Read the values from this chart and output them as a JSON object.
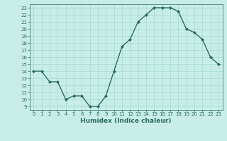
{
  "x": [
    0,
    1,
    2,
    3,
    4,
    5,
    6,
    7,
    8,
    9,
    10,
    11,
    12,
    13,
    14,
    15,
    16,
    17,
    18,
    19,
    20,
    21,
    22,
    23
  ],
  "y": [
    14,
    14,
    12.5,
    12.5,
    10,
    10.5,
    10.5,
    9,
    9,
    10.5,
    14,
    17.5,
    18.5,
    21,
    22,
    23,
    23,
    23,
    22.5,
    20,
    19.5,
    18.5,
    16,
    15
  ],
  "line_color": "#2d6b5e",
  "marker": "D",
  "marker_size": 2.0,
  "bg_color": "#c8ede8",
  "grid_color": "#a8d8d0",
  "xlabel": "Humidex (Indice chaleur)",
  "xlim": [
    -0.5,
    23.5
  ],
  "ylim": [
    8.5,
    23.5
  ],
  "yticks": [
    9,
    10,
    11,
    12,
    13,
    14,
    15,
    16,
    17,
    18,
    19,
    20,
    21,
    22,
    23
  ],
  "xticks": [
    0,
    1,
    2,
    3,
    4,
    5,
    6,
    7,
    8,
    9,
    10,
    11,
    12,
    13,
    14,
    15,
    16,
    17,
    18,
    19,
    20,
    21,
    22,
    23
  ],
  "tick_fontsize": 5.0,
  "xlabel_fontsize": 6.5,
  "label_color": "#2d6b5e",
  "linewidth": 1.0
}
